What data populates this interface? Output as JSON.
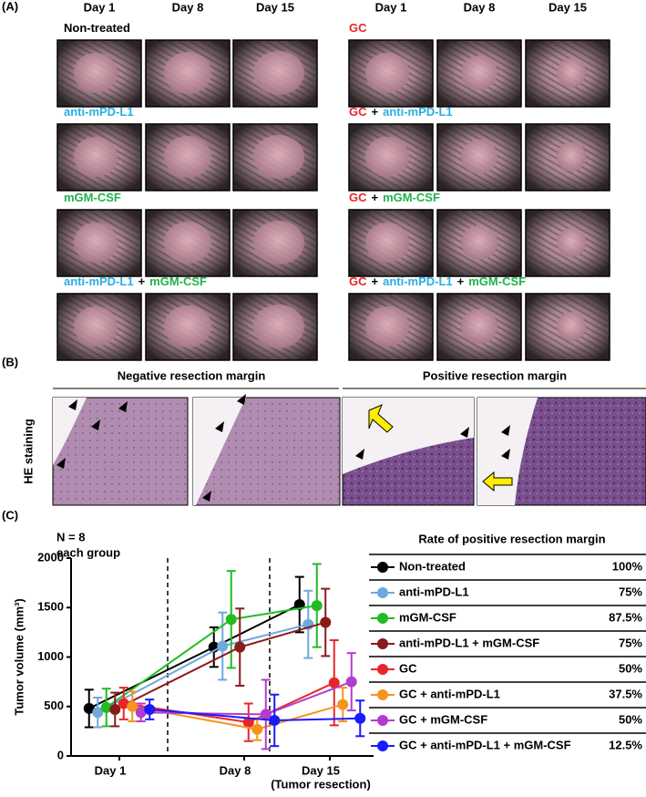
{
  "panel_a": {
    "label": "(A)",
    "days": [
      "Day 1",
      "Day 8",
      "Day 15"
    ],
    "groups": [
      {
        "parts": [
          {
            "text": "Non-treated",
            "color": "#000000"
          }
        ]
      },
      {
        "parts": [
          {
            "text": "anti-mPD-L1",
            "color": "#29aee0"
          }
        ]
      },
      {
        "parts": [
          {
            "text": "mGM-CSF",
            "color": "#1fb24a"
          }
        ]
      },
      {
        "parts": [
          {
            "text": "anti-mPD-L1",
            "color": "#29aee0"
          },
          {
            "text": "+",
            "color": "#000000"
          },
          {
            "text": "mGM-CSF",
            "color": "#1fb24a"
          }
        ]
      },
      {
        "parts": [
          {
            "text": "GC",
            "color": "#e8262a"
          }
        ]
      },
      {
        "parts": [
          {
            "text": "GC",
            "color": "#e8262a"
          },
          {
            "text": "+",
            "color": "#000000"
          },
          {
            "text": "anti-mPD-L1",
            "color": "#29aee0"
          }
        ]
      },
      {
        "parts": [
          {
            "text": "GC",
            "color": "#e8262a"
          },
          {
            "text": "+",
            "color": "#000000"
          },
          {
            "text": "mGM-CSF",
            "color": "#1fb24a"
          }
        ]
      },
      {
        "parts": [
          {
            "text": "GC",
            "color": "#e8262a"
          },
          {
            "text": "+",
            "color": "#000000"
          },
          {
            "text": "anti-mPD-L1",
            "color": "#29aee0"
          },
          {
            "text": "+",
            "color": "#000000"
          },
          {
            "text": "mGM-CSF",
            "color": "#1fb24a"
          }
        ]
      }
    ]
  },
  "panel_b": {
    "label": "(B)",
    "negative": "Negative resection margin",
    "positive": "Positive resection margin",
    "side_label": "HE staining"
  },
  "panel_c": {
    "label": "(C)",
    "table_title": "Rate of positive resection margin",
    "rates": [
      "100%",
      "75%",
      "87.5%",
      "75%",
      "50%",
      "37.5%",
      "50%",
      "12.5%"
    ]
  },
  "chart_data": {
    "type": "line",
    "y_label": "Tumor volume (mm³)",
    "annotations": [
      "N = 8",
      "each group"
    ],
    "categories": [
      "Day 1",
      "Day 8",
      "Day 15"
    ],
    "x_annotation": "(Tumor resection)",
    "ylim": [
      0,
      2000
    ],
    "yticks": [
      0,
      500,
      1000,
      1500,
      2000
    ],
    "series": [
      {
        "name": "Non-treated",
        "color": "#000000",
        "values": [
          480,
          1100,
          1530
        ],
        "errors": [
          190,
          200,
          280
        ]
      },
      {
        "name": "anti-mPD-L1",
        "color": "#6fa8dc",
        "values": [
          440,
          1110,
          1330
        ],
        "errors": [
          150,
          340,
          340
        ]
      },
      {
        "name": "mGM-CSF",
        "color": "#22bb22",
        "values": [
          490,
          1380,
          1520
        ],
        "errors": [
          190,
          490,
          420
        ]
      },
      {
        "name": "anti-mPD-L1 + mGM-CSF",
        "color": "#8b1a1a",
        "values": [
          470,
          1100,
          1350
        ],
        "errors": [
          170,
          390,
          340
        ]
      },
      {
        "name": "GC",
        "color": "#e8262a",
        "values": [
          530,
          340,
          740
        ],
        "errors": [
          160,
          190,
          430
        ]
      },
      {
        "name": "GC + anti-mPD-L1",
        "color": "#f7941d",
        "values": [
          500,
          270,
          520
        ],
        "errors": [
          150,
          110,
          170
        ]
      },
      {
        "name": "GC + mGM-CSF",
        "color": "#b23ccf",
        "values": [
          440,
          420,
          750
        ],
        "errors": [
          90,
          350,
          290
        ]
      },
      {
        "name": "GC + anti-mPD-L1 + mGM-CSF",
        "color": "#1a1aff",
        "values": [
          470,
          360,
          380
        ],
        "errors": [
          100,
          260,
          180
        ]
      }
    ]
  }
}
